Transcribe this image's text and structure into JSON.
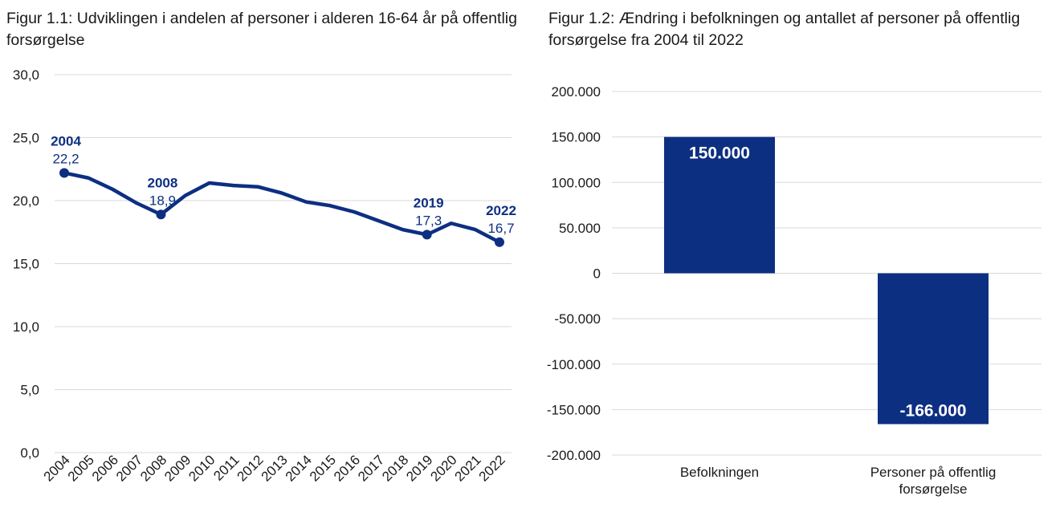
{
  "colors": {
    "series": "#0d2f82",
    "grid": "#d9d9d9",
    "text": "#1a1a1a"
  },
  "chart_data": [
    {
      "type": "line",
      "title": "Figur 1.1: Udviklingen i andelen af personer i alderen 16-64 år på offentlig forsørgelse",
      "x": [
        "2004",
        "2005",
        "2006",
        "2007",
        "2008",
        "2009",
        "2010",
        "2011",
        "2012",
        "2013",
        "2014",
        "2015",
        "2016",
        "2017",
        "2018",
        "2019",
        "2020",
        "2021",
        "2022"
      ],
      "series": [
        {
          "values": [
            22.2,
            21.8,
            20.9,
            19.8,
            18.9,
            20.4,
            21.4,
            21.2,
            21.1,
            20.6,
            19.9,
            19.6,
            19.1,
            18.4,
            17.7,
            17.3,
            18.2,
            17.7,
            16.7
          ]
        }
      ],
      "yticks": [
        "0,0",
        "5,0",
        "10,0",
        "15,0",
        "20,0",
        "25,0",
        "30,0"
      ],
      "ylim": [
        0,
        30
      ],
      "grid": true,
      "annotations": [
        {
          "year": "2004",
          "value": "22,2",
          "index": 0
        },
        {
          "year": "2008",
          "value": "18,9",
          "index": 4
        },
        {
          "year": "2019",
          "value": "17,3",
          "index": 15
        },
        {
          "year": "2022",
          "value": "16,7",
          "index": 18
        }
      ]
    },
    {
      "type": "bar",
      "title": "Figur 1.2: Ændring i befolkningen og antallet af personer på offentlig forsørgelse fra 2004 til 2022",
      "categories": [
        [
          "Befolkningen"
        ],
        [
          "Personer på offentlig",
          "forsørgelse"
        ]
      ],
      "values": [
        150000,
        -166000
      ],
      "data_labels": [
        "150.000",
        "-166.000"
      ],
      "yticks": [
        "200.000",
        "150.000",
        "100.000",
        "50.000",
        "0",
        "-50.000",
        "-100.000",
        "-150.000",
        "-200.000"
      ],
      "ylim": [
        -200000,
        200000
      ],
      "grid": true
    }
  ]
}
